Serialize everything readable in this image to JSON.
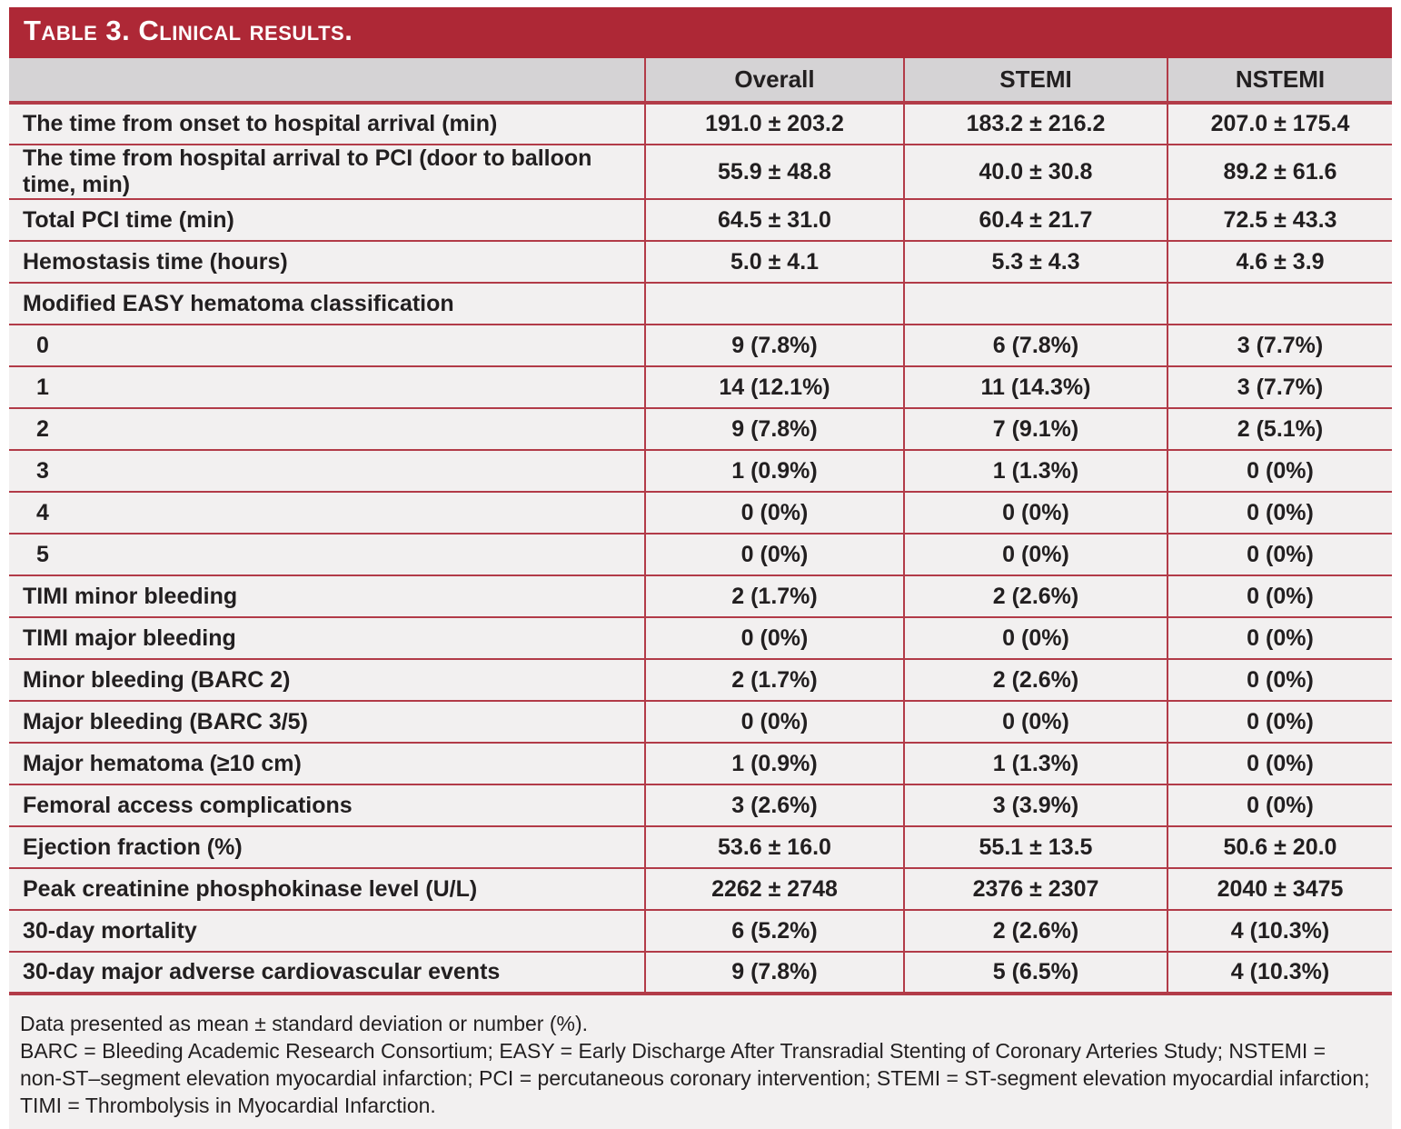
{
  "title": "Table 3. Clinical results.",
  "colors": {
    "title_bar_red": "#AE2836",
    "border_red": "#B23B48",
    "header_gray": "#D5D3D5",
    "row_bg": "#F2F0F0",
    "text": "#221F20",
    "title_text": "#FFFFFF"
  },
  "table": {
    "columns": [
      "",
      "Overall",
      "STEMI",
      "NSTEMI"
    ],
    "rows": [
      {
        "label": "The time from onset to hospital arrival (min)",
        "indent": false,
        "values": [
          "191.0 ± 203.2",
          "183.2 ± 216.2",
          "207.0 ± 175.4"
        ]
      },
      {
        "label": "The time from hospital arrival to PCI (door to balloon time, min)",
        "indent": false,
        "values": [
          "55.9 ± 48.8",
          "40.0 ± 30.8",
          "89.2 ± 61.6"
        ]
      },
      {
        "label": "Total PCI time (min)",
        "indent": false,
        "values": [
          "64.5 ± 31.0",
          "60.4 ± 21.7",
          "72.5 ± 43.3"
        ]
      },
      {
        "label": "Hemostasis time (hours)",
        "indent": false,
        "values": [
          "5.0 ± 4.1",
          "5.3 ± 4.3",
          "4.6 ± 3.9"
        ]
      },
      {
        "label": "Modified EASY hematoma classification",
        "indent": false,
        "values": [
          "",
          "",
          ""
        ]
      },
      {
        "label": "0",
        "indent": true,
        "values": [
          "9 (7.8%)",
          "6 (7.8%)",
          "3 (7.7%)"
        ]
      },
      {
        "label": "1",
        "indent": true,
        "values": [
          "14 (12.1%)",
          "11 (14.3%)",
          "3 (7.7%)"
        ]
      },
      {
        "label": "2",
        "indent": true,
        "values": [
          "9 (7.8%)",
          "7 (9.1%)",
          "2 (5.1%)"
        ]
      },
      {
        "label": "3",
        "indent": true,
        "values": [
          "1 (0.9%)",
          "1 (1.3%)",
          "0 (0%)"
        ]
      },
      {
        "label": "4",
        "indent": true,
        "values": [
          "0 (0%)",
          "0 (0%)",
          "0 (0%)"
        ]
      },
      {
        "label": "5",
        "indent": true,
        "values": [
          "0 (0%)",
          "0 (0%)",
          "0 (0%)"
        ]
      },
      {
        "label": "TIMI minor bleeding",
        "indent": false,
        "values": [
          "2 (1.7%)",
          "2 (2.6%)",
          "0 (0%)"
        ]
      },
      {
        "label": "TIMI major bleeding",
        "indent": false,
        "values": [
          "0 (0%)",
          "0 (0%)",
          "0 (0%)"
        ]
      },
      {
        "label": "Minor bleeding (BARC 2)",
        "indent": false,
        "values": [
          "2 (1.7%)",
          "2 (2.6%)",
          "0 (0%)"
        ]
      },
      {
        "label": "Major bleeding (BARC 3/5)",
        "indent": false,
        "values": [
          "0 (0%)",
          "0 (0%)",
          "0 (0%)"
        ]
      },
      {
        "label": "Major hematoma (≥10 cm)",
        "indent": false,
        "values": [
          "1 (0.9%)",
          "1 (1.3%)",
          "0 (0%)"
        ]
      },
      {
        "label": "Femoral access complications",
        "indent": false,
        "values": [
          "3 (2.6%)",
          "3 (3.9%)",
          "0 (0%)"
        ]
      },
      {
        "label": "Ejection fraction (%)",
        "indent": false,
        "values": [
          "53.6 ± 16.0",
          "55.1 ± 13.5",
          "50.6 ± 20.0"
        ]
      },
      {
        "label": "Peak creatinine phosphokinase level (U/L)",
        "indent": false,
        "values": [
          "2262 ± 2748",
          "2376 ± 2307",
          "2040 ± 3475"
        ]
      },
      {
        "label": "30-day mortality",
        "indent": false,
        "values": [
          "6 (5.2%)",
          "2 (2.6%)",
          "4 (10.3%)"
        ]
      },
      {
        "label": "30-day major adverse cardiovascular events",
        "indent": false,
        "values": [
          "9 (7.8%)",
          "5 (6.5%)",
          "4 (10.3%)"
        ]
      }
    ]
  },
  "footnotes": [
    "Data presented as mean ± standard deviation or number (%).",
    "BARC = Bleeding Academic Research Consortium; EASY = Early Discharge After Transradial Stenting of Coronary Arteries Study; NSTEMI = non-ST–segment elevation myocardial infarction; PCI = percutaneous coronary intervention; STEMI = ST-segment elevation myocardial infarction; TIMI = Thrombolysis in Myocardial Infarction."
  ]
}
